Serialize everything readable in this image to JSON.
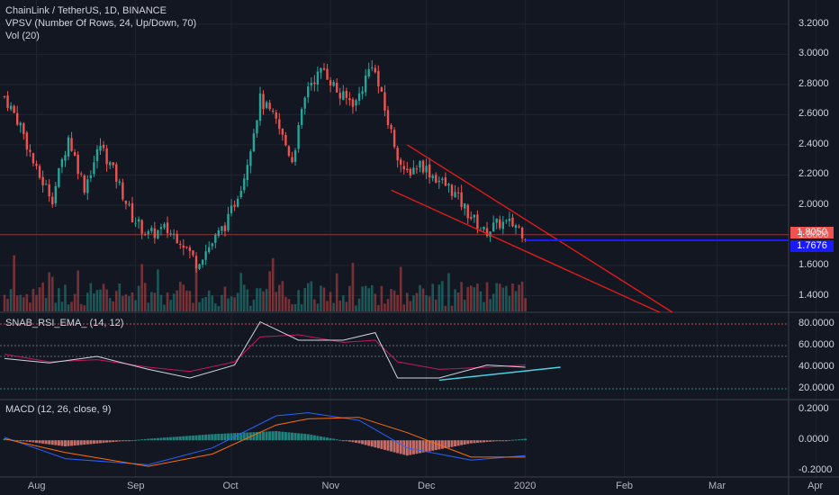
{
  "header": {
    "symbol_line": "ChainLink / TetherUS, 1D, BINANCE",
    "vpsv_line": "VPSV (Number Of Rows, 24, Up/Down, 70)",
    "vol_line": "Vol (20)"
  },
  "rsi_panel": {
    "title": "SNAB_RSI_EMA_ (14, 12)"
  },
  "macd_panel": {
    "title": "MACD (12, 26, close, 9)"
  },
  "price_tags": {
    "last": "1.8050",
    "line": "1.7676"
  },
  "colors": {
    "background": "#131722",
    "up": "#26a69a",
    "down": "#ef5350",
    "trendline": "#e01b1b",
    "hline": "#1a1aff",
    "rsi_trend": "#4dd0e1",
    "text": "#d1d4dc",
    "grid": "#1f2430"
  },
  "chart_data": [
    {
      "type": "candlestick",
      "title": "ChainLink / TetherUS, 1D, BINANCE",
      "x_ticks": [
        "Aug",
        "Sep",
        "Oct",
        "Nov",
        "Dec",
        "2020",
        "Feb",
        "Mar",
        "Apr"
      ],
      "y_ticks": [
        "3.2000",
        "3.0000",
        "2.8000",
        "2.6000",
        "2.4000",
        "2.2000",
        "2.0000",
        "1.8000",
        "1.6000",
        "1.4000"
      ],
      "ylim": [
        1.29,
        3.36
      ],
      "close_points": [
        [
          "2019-07-22",
          2.72
        ],
        [
          "2019-07-27",
          2.53
        ],
        [
          "2019-08-01",
          2.22
        ],
        [
          "2019-08-06",
          2.05
        ],
        [
          "2019-08-11",
          2.45
        ],
        [
          "2019-08-16",
          2.12
        ],
        [
          "2019-08-21",
          2.4
        ],
        [
          "2019-08-26",
          2.18
        ],
        [
          "2019-08-31",
          1.92
        ],
        [
          "2019-09-05",
          1.8
        ],
        [
          "2019-09-10",
          1.84
        ],
        [
          "2019-09-15",
          1.78
        ],
        [
          "2019-09-20",
          1.62
        ],
        [
          "2019-09-25",
          1.75
        ],
        [
          "2019-09-30",
          1.9
        ],
        [
          "2019-10-05",
          2.2
        ],
        [
          "2019-10-10",
          2.7
        ],
        [
          "2019-10-15",
          2.55
        ],
        [
          "2019-10-20",
          2.3
        ],
        [
          "2019-10-25",
          2.8
        ],
        [
          "2019-10-30",
          2.9
        ],
        [
          "2019-11-04",
          2.72
        ],
        [
          "2019-11-09",
          2.68
        ],
        [
          "2019-11-14",
          2.95
        ],
        [
          "2019-11-19",
          2.55
        ],
        [
          "2019-11-24",
          2.2
        ],
        [
          "2019-11-29",
          2.28
        ],
        [
          "2019-12-04",
          2.18
        ],
        [
          "2019-12-09",
          2.1
        ],
        [
          "2019-12-14",
          1.95
        ],
        [
          "2019-12-19",
          1.82
        ],
        [
          "2019-12-24",
          1.88
        ],
        [
          "2019-12-29",
          1.87
        ],
        [
          "2020-01-01",
          1.8
        ]
      ],
      "annotations": [
        {
          "type": "trendline",
          "points": [
            [
              "2019-11-25",
              2.4
            ],
            [
              "2020-02-16",
              1.29
            ]
          ]
        },
        {
          "type": "trendline",
          "points": [
            [
              "2019-11-20",
              2.1
            ],
            [
              "2020-02-12",
              1.29
            ]
          ]
        },
        {
          "type": "horizontal_line",
          "from": "2020-01-01",
          "value": 1.7676
        }
      ]
    },
    {
      "type": "line",
      "title": "SNAB_RSI_EMA_ (14, 12)",
      "y_ticks": [
        "80.0000",
        "60.0000",
        "40.0000",
        "20.0000"
      ],
      "ylim": [
        10,
        90
      ],
      "levels": [
        80,
        60,
        50,
        20
      ],
      "series": [
        {
          "values": [
            [
              "2019-07-22",
              52
            ],
            [
              "2019-08-05",
              45
            ],
            [
              "2019-08-20",
              47
            ],
            [
              "2019-09-05",
              40
            ],
            [
              "2019-09-18",
              36
            ],
            [
              "2019-10-02",
              45
            ],
            [
              "2019-10-10",
              68
            ],
            [
              "2019-10-22",
              70
            ],
            [
              "2019-11-05",
              63
            ],
            [
              "2019-11-15",
              65
            ],
            [
              "2019-11-22",
              45
            ],
            [
              "2019-12-05",
              38
            ],
            [
              "2019-12-20",
              40
            ],
            [
              "2020-01-01",
              42
            ]
          ]
        },
        {
          "values": [
            [
              "2019-07-22",
              48
            ],
            [
              "2019-08-05",
              44
            ],
            [
              "2019-08-20",
              50
            ],
            [
              "2019-09-05",
              38
            ],
            [
              "2019-09-18",
              30
            ],
            [
              "2019-10-02",
              42
            ],
            [
              "2019-10-10",
              82
            ],
            [
              "2019-10-22",
              65
            ],
            [
              "2019-11-05",
              65
            ],
            [
              "2019-11-15",
              72
            ],
            [
              "2019-11-22",
              30
            ],
            [
              "2019-12-05",
              30
            ],
            [
              "2019-12-20",
              42
            ],
            [
              "2020-01-01",
              40
            ]
          ]
        }
      ],
      "annotations": [
        {
          "type": "trendline",
          "points": [
            [
              "2019-12-05",
              28
            ],
            [
              "2020-01-12",
              40
            ]
          ]
        }
      ]
    },
    {
      "type": "line",
      "title": "MACD (12, 26, close, 9)",
      "y_ticks": [
        "0.2000",
        "0.0000",
        "-0.2000"
      ],
      "ylim": [
        -0.24,
        0.26
      ],
      "series": [
        {
          "values": [
            [
              "2019-07-22",
              0.02
            ],
            [
              "2019-08-10",
              -0.12
            ],
            [
              "2019-09-05",
              -0.16
            ],
            [
              "2019-09-25",
              -0.05
            ],
            [
              "2019-10-15",
              0.16
            ],
            [
              "2019-10-25",
              0.18
            ],
            [
              "2019-11-10",
              0.13
            ],
            [
              "2019-11-25",
              -0.05
            ],
            [
              "2019-12-15",
              -0.13
            ],
            [
              "2020-01-01",
              -0.1
            ]
          ]
        },
        {
          "values": [
            [
              "2019-07-22",
              0.01
            ],
            [
              "2019-08-10",
              -0.08
            ],
            [
              "2019-09-05",
              -0.17
            ],
            [
              "2019-09-25",
              -0.09
            ],
            [
              "2019-10-15",
              0.1
            ],
            [
              "2019-10-25",
              0.14
            ],
            [
              "2019-11-10",
              0.15
            ],
            [
              "2019-11-25",
              0.05
            ],
            [
              "2019-12-15",
              -0.11
            ],
            [
              "2020-01-01",
              -0.11
            ]
          ]
        }
      ]
    }
  ]
}
